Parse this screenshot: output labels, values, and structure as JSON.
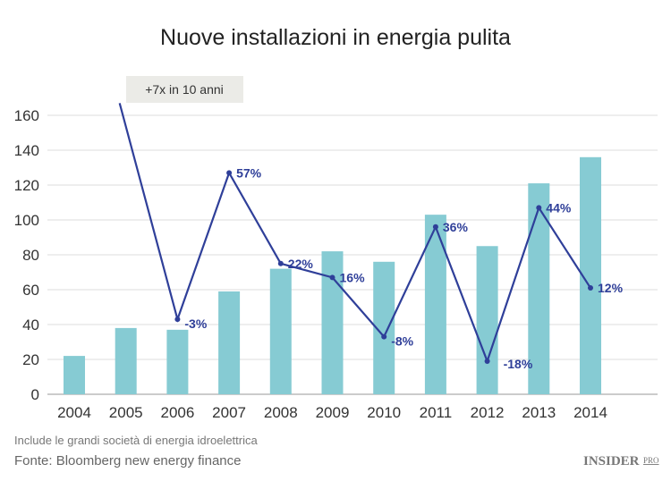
{
  "chart_data": {
    "type": "bar+line",
    "title": "Nuove installazioni in energia pulita",
    "categories": [
      "2004",
      "2005",
      "2006",
      "2007",
      "2008",
      "2009",
      "2010",
      "2011",
      "2012",
      "2013",
      "2014"
    ],
    "series": [
      {
        "type": "bar",
        "values": [
          22,
          38,
          37,
          59,
          72,
          82,
          76,
          103,
          85,
          121,
          136
        ],
        "color": "#86cbd3"
      },
      {
        "type": "line",
        "values": [
          null,
          167,
          43,
          127,
          75,
          67,
          33,
          96,
          19,
          107,
          61
        ],
        "labels": [
          "",
          "",
          "-3%",
          "57%",
          "22%",
          "16%",
          "-8%",
          "36%",
          "-18%",
          "44%",
          "12%"
        ],
        "color": "#2f3f99"
      }
    ],
    "yticks": [
      0,
      20,
      40,
      60,
      80,
      100,
      120,
      140,
      160
    ],
    "ylim": [
      0,
      160
    ],
    "grid": true,
    "annotation": "+7x in 10 anni"
  },
  "footer": {
    "note": "Include le grandi società di energia idroelettrica",
    "source": "Fonte: Bloomberg new energy finance",
    "logo": "INSIDER",
    "logo_sup": "PRO"
  }
}
